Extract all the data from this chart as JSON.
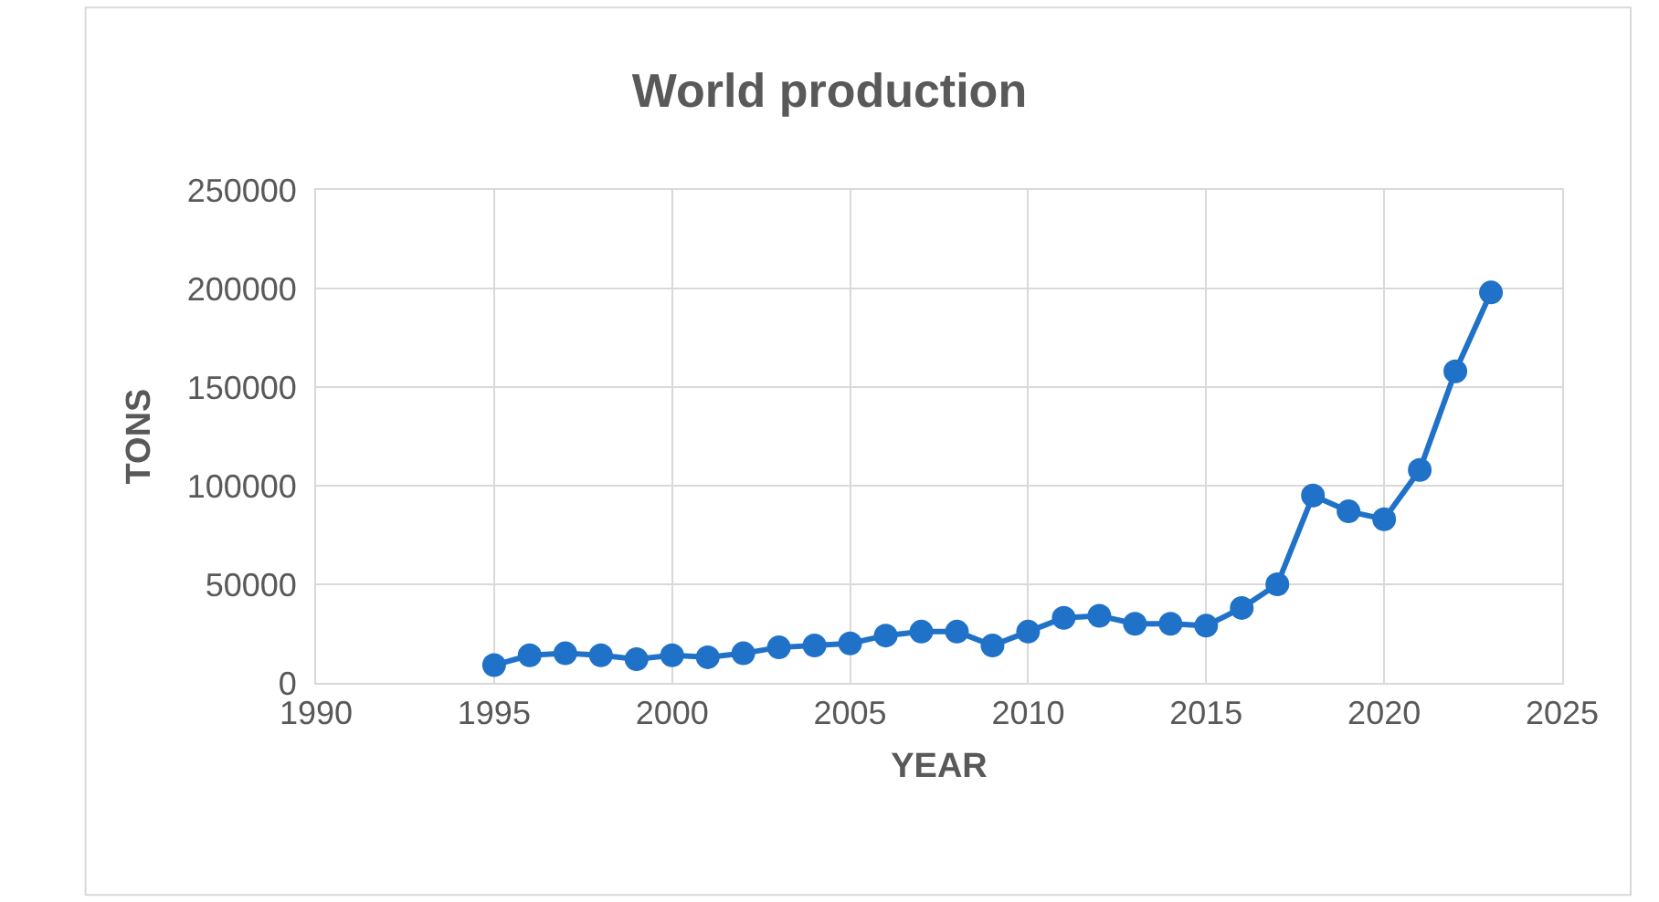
{
  "chart_data": {
    "type": "line",
    "title": "World production",
    "xlabel": "YEAR",
    "ylabel": "TONS",
    "x": [
      1995,
      1996,
      1997,
      1998,
      1999,
      2000,
      2001,
      2002,
      2003,
      2004,
      2005,
      2006,
      2007,
      2008,
      2009,
      2010,
      2011,
      2012,
      2013,
      2014,
      2015,
      2016,
      2017,
      2018,
      2019,
      2020,
      2021,
      2022,
      2023
    ],
    "series": [
      {
        "color": "#1f72c8",
        "values": [
          9000,
          14000,
          15000,
          14000,
          12000,
          14000,
          13000,
          15000,
          18000,
          19000,
          20000,
          24000,
          26000,
          26000,
          19000,
          26000,
          33000,
          34000,
          30000,
          30000,
          29000,
          38000,
          50000,
          95000,
          87000,
          83000,
          108000,
          158000,
          198000
        ]
      }
    ],
    "xlim": [
      1990,
      2025
    ],
    "xticks": [
      1990,
      1995,
      2000,
      2005,
      2010,
      2015,
      2020,
      2025
    ],
    "ylim": [
      0,
      250000
    ],
    "yticks": [
      0,
      50000,
      100000,
      150000,
      200000,
      250000
    ],
    "grid": true,
    "marker": "circle",
    "line_style": "solid"
  }
}
